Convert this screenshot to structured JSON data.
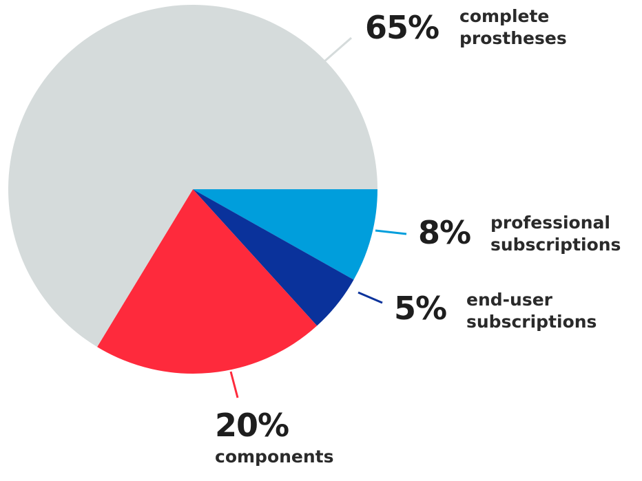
{
  "chart_data": {
    "type": "pie",
    "categories": [
      "professional subscriptions",
      "end-user subscriptions",
      "components",
      "complete prostheses"
    ],
    "values": [
      8,
      5,
      20,
      65
    ],
    "value_labels": [
      "8%",
      "5%",
      "20%",
      "65%"
    ],
    "colors": [
      "#009edc",
      "#0a329b",
      "#fe2a3c",
      "#d5dbdb"
    ]
  }
}
